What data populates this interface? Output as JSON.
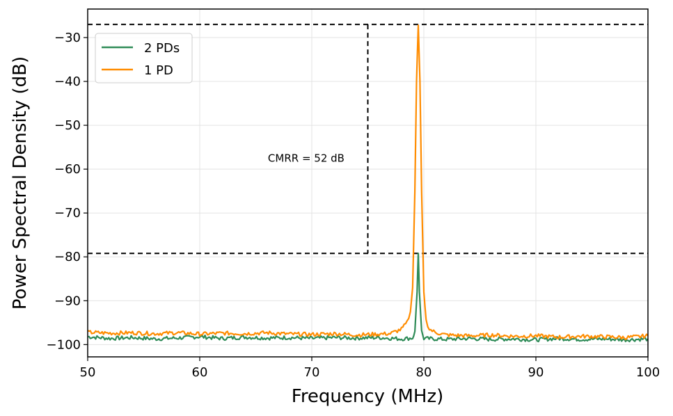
{
  "chart_data": {
    "type": "line",
    "xlabel": "Frequency (MHz)",
    "ylabel": "Power Spectral Density (dB)",
    "xlim": [
      50,
      100
    ],
    "ylim": [
      -102.8,
      -23.5
    ],
    "xticks": [
      50,
      60,
      70,
      80,
      90,
      100
    ],
    "xtick_labels": [
      "50",
      "60",
      "70",
      "80",
      "90",
      "100"
    ],
    "yticks": [
      -30,
      -40,
      -50,
      -60,
      -70,
      -80,
      -90,
      -100
    ],
    "ytick_labels": [
      "−30",
      "−40",
      "−50",
      "−60",
      "−70",
      "−80",
      "−90",
      "−100"
    ],
    "grid": true,
    "legend": {
      "position": "top-left",
      "entries": [
        "2 PDs",
        "1 PD"
      ]
    },
    "series": [
      {
        "name": "2 PDs",
        "color": "#2e8b57",
        "x": [
          50,
          52,
          54,
          56,
          58,
          60,
          62,
          64,
          66,
          68,
          70,
          72,
          74,
          76,
          78,
          79,
          79.2,
          79.4,
          79.5,
          79.6,
          79.8,
          80,
          82,
          84,
          86,
          88,
          90,
          92,
          94,
          96,
          98,
          100
        ],
        "y": [
          -98.2,
          -98.6,
          -98.4,
          -98.7,
          -98.5,
          -98.2,
          -98.6,
          -98.3,
          -98.5,
          -98.4,
          -98.6,
          -98.4,
          -98.5,
          -98.4,
          -98.7,
          -98.5,
          -97,
          -88,
          -79.2,
          -88,
          -97,
          -98.6,
          -98.8,
          -98.6,
          -98.8,
          -98.7,
          -98.9,
          -98.6,
          -98.8,
          -98.7,
          -98.9,
          -98.7
        ]
      },
      {
        "name": "1 PD",
        "color": "#ff8c00",
        "x": [
          50,
          52,
          54,
          56,
          58,
          60,
          62,
          64,
          66,
          68,
          70,
          72,
          74,
          76,
          77,
          78,
          78.5,
          78.8,
          79,
          79.2,
          79.35,
          79.5,
          79.65,
          79.8,
          80,
          80.2,
          80.5,
          81,
          82,
          84,
          86,
          88,
          90,
          92,
          94,
          96,
          98,
          100
        ],
        "y": [
          -97.2,
          -97.4,
          -97.3,
          -97.5,
          -97.3,
          -97.6,
          -97.4,
          -97.5,
          -97.3,
          -97.6,
          -97.7,
          -97.5,
          -97.8,
          -97.6,
          -97.5,
          -96.5,
          -95,
          -92.5,
          -87,
          -65,
          -40,
          -27.2,
          -40,
          -65,
          -88,
          -94.5,
          -96.5,
          -97.2,
          -97.8,
          -98,
          -97.8,
          -98.1,
          -98,
          -98.3,
          -98.1,
          -98.2,
          -98.4,
          -98
        ]
      }
    ],
    "reference_lines": {
      "horizontal_upper": -27,
      "horizontal_lower": -79.2,
      "vertical_x": 75
    },
    "annotations": [
      {
        "text": "CMRR = 52 dB",
        "x": 69.5,
        "y": -57.5
      }
    ]
  }
}
